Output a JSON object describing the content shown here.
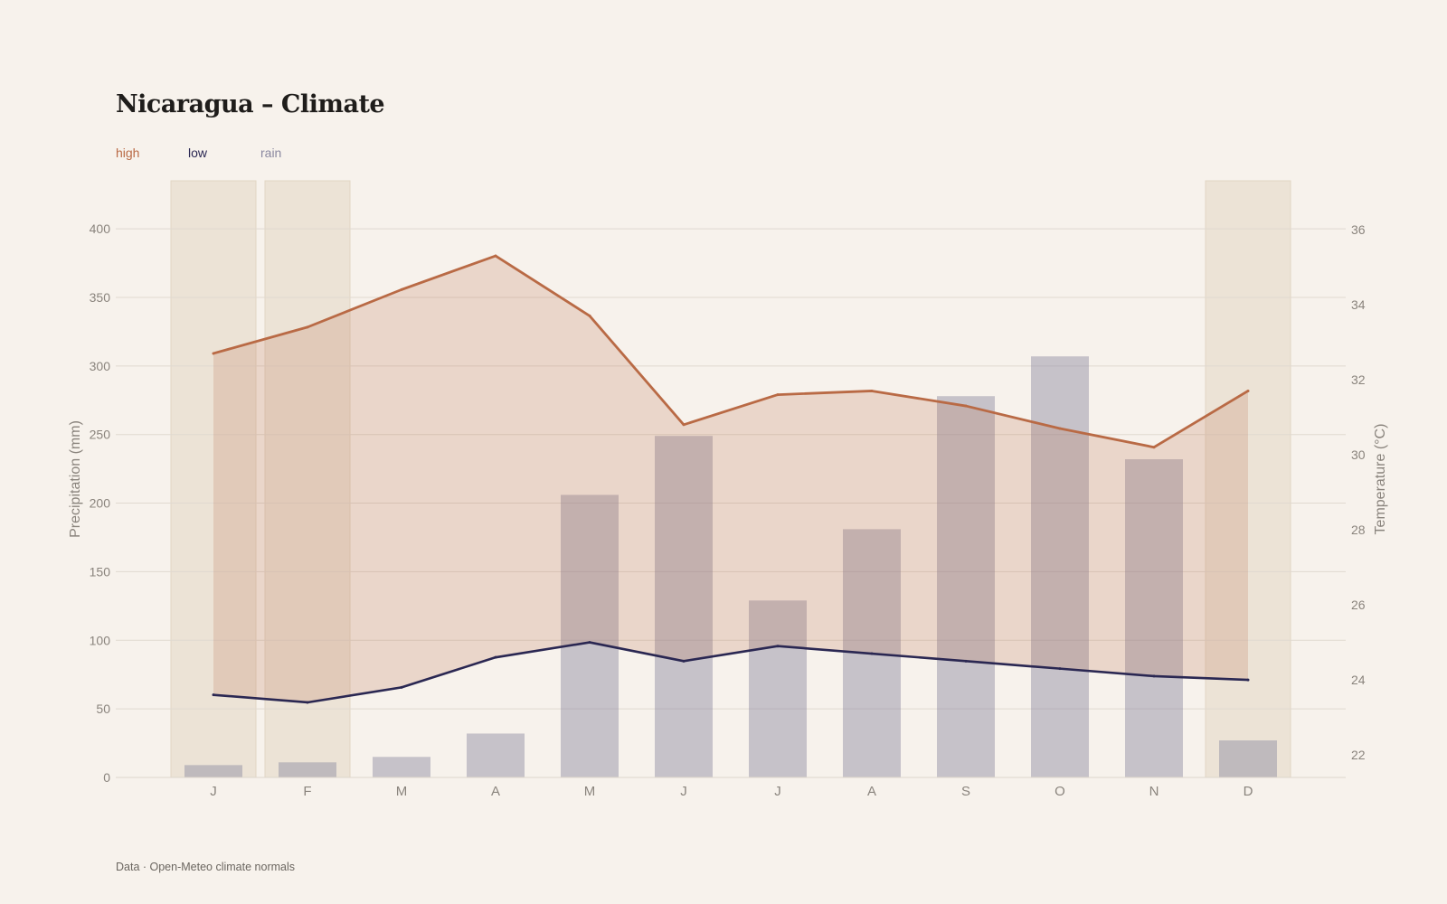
{
  "title": "Nicaragua – Climate",
  "source": "Data · Open-Meteo climate normals",
  "colors": {
    "background": "#f7f2ec",
    "high": "#b96a45",
    "low": "#2a2752",
    "rain": "#8a88a0",
    "dry_season_band": "#ece3d6"
  },
  "chart_data": {
    "type": "bar",
    "title": "Nicaragua – Climate",
    "categories": [
      "J",
      "F",
      "M",
      "A",
      "M",
      "J",
      "J",
      "A",
      "S",
      "O",
      "N",
      "D"
    ],
    "legend": [
      "high",
      "low",
      "rain"
    ],
    "legend_position": "top-left",
    "grid": true,
    "highlighted_months": [
      "J",
      "F",
      "D"
    ],
    "y_left": {
      "label": "Precipitation (mm)",
      "ticks": [
        0,
        50,
        100,
        150,
        200,
        250,
        300,
        350,
        400
      ],
      "range": [
        0,
        435
      ]
    },
    "y_right": {
      "label": "Temperature (°C)",
      "ticks": [
        22,
        24,
        26,
        28,
        30,
        32,
        34,
        36
      ],
      "range": [
        21.4,
        37.3
      ]
    },
    "series": [
      {
        "name": "rain",
        "type": "bar",
        "axis": "left",
        "values": [
          9,
          11,
          15,
          32,
          206,
          249,
          129,
          181,
          278,
          307,
          232,
          27
        ]
      },
      {
        "name": "high",
        "type": "line",
        "axis": "right",
        "values": [
          32.7,
          33.4,
          34.4,
          35.3,
          33.7,
          30.8,
          31.6,
          31.7,
          31.3,
          30.7,
          30.2,
          31.7
        ]
      },
      {
        "name": "low",
        "type": "line",
        "axis": "right",
        "values": [
          23.6,
          23.4,
          23.8,
          24.6,
          25.0,
          24.5,
          24.9,
          24.7,
          24.5,
          24.3,
          24.1,
          24.0
        ]
      }
    ]
  }
}
